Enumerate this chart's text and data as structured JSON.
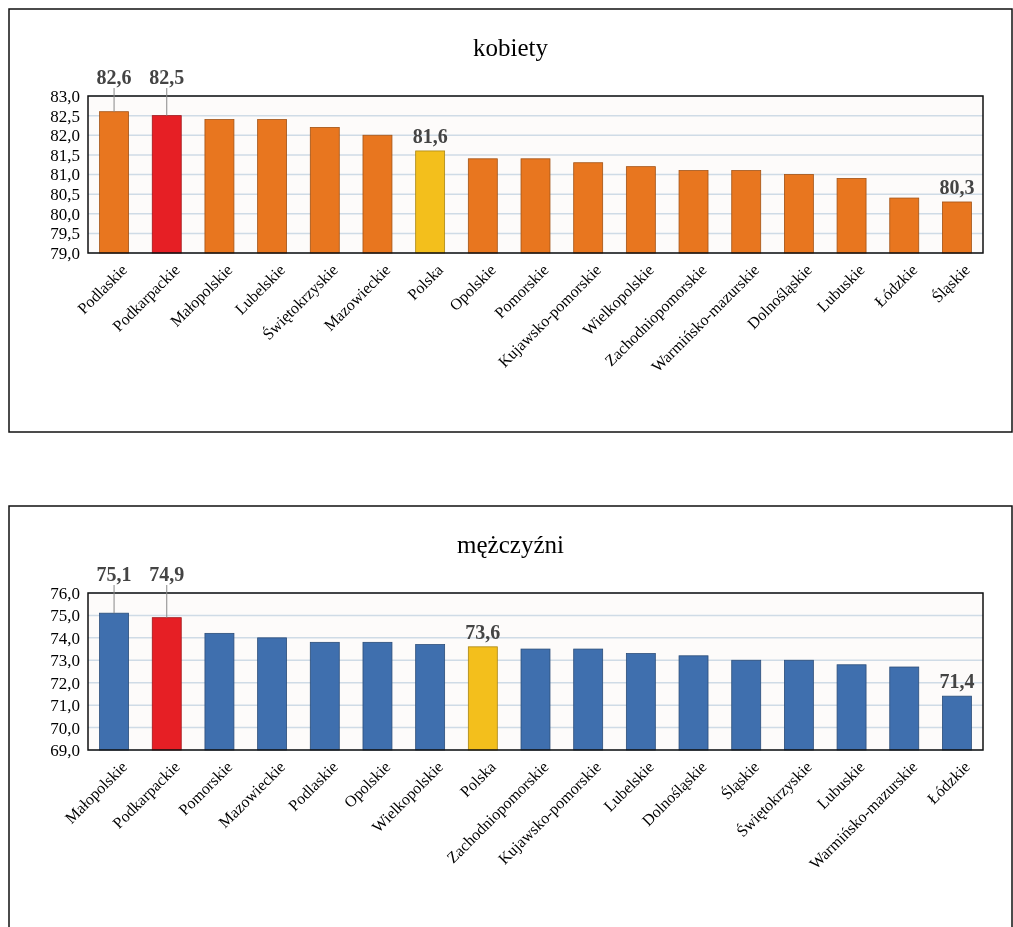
{
  "chart_data": [
    {
      "type": "bar",
      "title": "kobiety",
      "categories": [
        "Podlaskie",
        "Podkarpackie",
        "Małopolskie",
        "Lubelskie",
        "Świętokrzyskie",
        "Mazowieckie",
        "Polska",
        "Opolskie",
        "Pomorskie",
        "Kujawsko-pomorskie",
        "Wielkopolskie",
        "Zachodniopomorskie",
        "Warmińsko-mazurskie",
        "Dolnośląskie",
        "Lubuskie",
        "Łódzkie",
        "Śląskie"
      ],
      "values": [
        82.6,
        82.5,
        82.4,
        82.4,
        82.2,
        82.0,
        81.6,
        81.4,
        81.4,
        81.3,
        81.2,
        81.1,
        81.1,
        81.0,
        80.9,
        80.4,
        80.3
      ],
      "colors": [
        "#e8761f",
        "#e61f25",
        "#e8761f",
        "#e8761f",
        "#e8761f",
        "#e8761f",
        "#f3bf1c",
        "#e8761f",
        "#e8761f",
        "#e8761f",
        "#e8761f",
        "#e8761f",
        "#e8761f",
        "#e8761f",
        "#e8761f",
        "#e8761f",
        "#e8761f"
      ],
      "value_labels": [
        "82,6",
        "82,5",
        null,
        null,
        null,
        null,
        "81,6",
        null,
        null,
        null,
        null,
        null,
        null,
        null,
        null,
        null,
        "80,3"
      ],
      "ylim": [
        79,
        83
      ],
      "yticks": [
        {
          "value": 79,
          "label": "79,0"
        },
        {
          "value": 79.5,
          "label": "79,5"
        },
        {
          "value": 80,
          "label": "80,0"
        },
        {
          "value": 80.5,
          "label": "80,5"
        },
        {
          "value": 81,
          "label": "81,0"
        },
        {
          "value": 81.5,
          "label": "81,5"
        },
        {
          "value": 82,
          "label": "82,0"
        },
        {
          "value": 82.5,
          "label": "82,5"
        },
        {
          "value": 83,
          "label": "83,0"
        }
      ],
      "grid": "y"
    },
    {
      "type": "bar",
      "title": "mężczyźni",
      "categories": [
        "Małopolskie",
        "Podkarpackie",
        "Pomorskie",
        "Mazowieckie",
        "Podlaskie",
        "Opolskie",
        "Wielkopolskie",
        "Polska",
        "Zachodniopomorskie",
        "Kujawsko-pomorskie",
        "Lubelskie",
        "Dolnośląskie",
        "Śląskie",
        "Świętokrzyskie",
        "Lubuskie",
        "Warmińsko-mazurskie",
        "Łódzkie"
      ],
      "values": [
        75.1,
        74.9,
        74.2,
        74.0,
        73.8,
        73.8,
        73.7,
        73.6,
        73.5,
        73.5,
        73.3,
        73.2,
        73.0,
        73.0,
        72.8,
        72.7,
        71.4
      ],
      "colors": [
        "#3f6fae",
        "#e61f25",
        "#3f6fae",
        "#3f6fae",
        "#3f6fae",
        "#3f6fae",
        "#3f6fae",
        "#f3bf1c",
        "#3f6fae",
        "#3f6fae",
        "#3f6fae",
        "#3f6fae",
        "#3f6fae",
        "#3f6fae",
        "#3f6fae",
        "#3f6fae",
        "#3f6fae"
      ],
      "value_labels": [
        "75,1",
        "74,9",
        null,
        null,
        null,
        null,
        null,
        "73,6",
        null,
        null,
        null,
        null,
        null,
        null,
        null,
        null,
        "71,4"
      ],
      "ylim": [
        69,
        76
      ],
      "yticks": [
        {
          "value": 69,
          "label": "69,0"
        },
        {
          "value": 70,
          "label": "70,0"
        },
        {
          "value": 71,
          "label": "71,0"
        },
        {
          "value": 72,
          "label": "72,0"
        },
        {
          "value": 73,
          "label": "73,0"
        },
        {
          "value": 74,
          "label": "74,0"
        },
        {
          "value": 75,
          "label": "75,0"
        },
        {
          "value": 76,
          "label": "76,0"
        }
      ],
      "grid": "y"
    }
  ]
}
